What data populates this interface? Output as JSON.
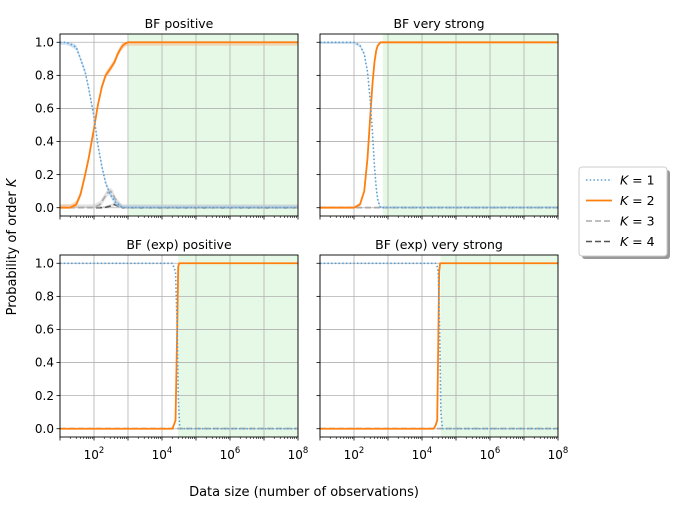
{
  "figure": {
    "ylabel": "Probability of order K",
    "ylabel_main": "Probability of order ",
    "ylabel_var": "K",
    "xlabel": "Data size (number of observations)"
  },
  "legend": {
    "placement": "right",
    "entries": [
      {
        "label": "K = 1",
        "var": "K",
        "eq": " = 1",
        "color": "#5a9fd4",
        "style": "dotted"
      },
      {
        "label": "K = 2",
        "var": "K",
        "eq": " = 2",
        "color": "#ff7f0e",
        "style": "solid"
      },
      {
        "label": "K = 3",
        "var": "K",
        "eq": " = 3",
        "color": "#aaaaaa",
        "style": "dashed"
      },
      {
        "label": "K = 4",
        "var": "K",
        "eq": " = 4",
        "color": "#555555",
        "style": "dashed"
      }
    ]
  },
  "colors": {
    "shade": "#e6f9e6",
    "band_blue": "#a9cbe8",
    "band_orange": "#f5b98a",
    "band_grey": "#cccccc"
  },
  "chart_data": [
    {
      "type": "line",
      "title": "BF positive",
      "xscale": "log",
      "xlim": [
        10,
        100000000
      ],
      "ylim": [
        -0.05,
        1.05
      ],
      "xticks": [
        {
          "value": 100,
          "base": "10",
          "exp": "2"
        },
        {
          "value": 10000,
          "base": "10",
          "exp": "4"
        },
        {
          "value": 1000000,
          "base": "10",
          "exp": "6"
        },
        {
          "value": 100000000,
          "base": "10",
          "exp": "8"
        }
      ],
      "yticks": [
        {
          "value": 0.0,
          "label": "0.0"
        },
        {
          "value": 0.2,
          "label": "0.2"
        },
        {
          "value": 0.4,
          "label": "0.4"
        },
        {
          "value": 0.6,
          "label": "0.6"
        },
        {
          "value": 0.8,
          "label": "0.8"
        },
        {
          "value": 1.0,
          "label": "1.0"
        }
      ],
      "grid": true,
      "shaded_from_x": 1050,
      "show_xticklabels": false,
      "show_yticklabels": true,
      "series": [
        {
          "name": "K = 1",
          "x": [
            10,
            15,
            20,
            30,
            40,
            55,
            70,
            100,
            130,
            170,
            220,
            300,
            400,
            500,
            600,
            700,
            800,
            1000,
            1500,
            100000000
          ],
          "y": [
            1.0,
            1.0,
            0.99,
            0.97,
            0.9,
            0.82,
            0.72,
            0.55,
            0.38,
            0.25,
            0.15,
            0.08,
            0.04,
            0.02,
            0.01,
            0.0,
            0.0,
            0.0,
            0.0,
            0.0
          ],
          "band": 0.015
        },
        {
          "name": "K = 2",
          "x": [
            10,
            20,
            30,
            40,
            55,
            70,
            100,
            130,
            170,
            220,
            300,
            400,
            500,
            600,
            700,
            800,
            1000,
            1200,
            100000000
          ],
          "y": [
            0.0,
            0.0,
            0.02,
            0.08,
            0.2,
            0.3,
            0.48,
            0.62,
            0.73,
            0.8,
            0.84,
            0.88,
            0.93,
            0.96,
            0.98,
            0.99,
            1.0,
            1.0,
            1.0
          ],
          "band": 0.02
        },
        {
          "name": "K = 3",
          "x": [
            10,
            100,
            150,
            200,
            250,
            300,
            350,
            400,
            500,
            600,
            700,
            1000,
            100000000
          ],
          "y": [
            0.0,
            0.0,
            0.02,
            0.06,
            0.09,
            0.1,
            0.09,
            0.06,
            0.03,
            0.01,
            0.0,
            0.0,
            0.0
          ],
          "band": 0.02
        },
        {
          "name": "K = 4",
          "x": [
            10,
            200,
            300,
            400,
            500,
            700,
            1000,
            100000000
          ],
          "y": [
            0.0,
            0.0,
            0.01,
            0.02,
            0.01,
            0.0,
            0.0,
            0.0
          ],
          "band": 0.01
        }
      ]
    },
    {
      "type": "line",
      "title": "BF very strong",
      "xscale": "log",
      "xlim": [
        10,
        100000000
      ],
      "ylim": [
        -0.05,
        1.05
      ],
      "xticks": [
        {
          "value": 100,
          "base": "10",
          "exp": "2"
        },
        {
          "value": 10000,
          "base": "10",
          "exp": "4"
        },
        {
          "value": 1000000,
          "base": "10",
          "exp": "6"
        },
        {
          "value": 100000000,
          "base": "10",
          "exp": "8"
        }
      ],
      "yticks": [
        {
          "value": 0.0,
          "label": "0.0"
        },
        {
          "value": 0.2,
          "label": "0.2"
        },
        {
          "value": 0.4,
          "label": "0.4"
        },
        {
          "value": 0.6,
          "label": "0.6"
        },
        {
          "value": 0.8,
          "label": "0.8"
        },
        {
          "value": 1.0,
          "label": "1.0"
        }
      ],
      "grid": true,
      "shaded_from_x": 700,
      "show_xticklabels": false,
      "show_yticklabels": false,
      "series": [
        {
          "name": "K = 1",
          "x": [
            10,
            100,
            150,
            200,
            250,
            300,
            350,
            400,
            450,
            500,
            550,
            600,
            100000000
          ],
          "y": [
            1.0,
            1.0,
            0.98,
            0.93,
            0.82,
            0.65,
            0.45,
            0.25,
            0.12,
            0.05,
            0.02,
            0.0,
            0.0
          ],
          "band": 0.01
        },
        {
          "name": "K = 2",
          "x": [
            10,
            100,
            150,
            200,
            250,
            300,
            350,
            400,
            450,
            500,
            550,
            600,
            100000000
          ],
          "y": [
            0.0,
            0.0,
            0.02,
            0.1,
            0.3,
            0.55,
            0.75,
            0.88,
            0.95,
            0.98,
            0.99,
            1.0,
            1.0
          ],
          "band": 0.01
        },
        {
          "name": "K = 3",
          "x": [
            10,
            100000000
          ],
          "y": [
            0.0,
            0.0
          ],
          "band": 0
        },
        {
          "name": "K = 4",
          "x": [
            10,
            100000000
          ],
          "y": [
            0.0,
            0.0
          ],
          "band": 0
        }
      ]
    },
    {
      "type": "line",
      "title": "BF (exp) positive",
      "xscale": "log",
      "xlim": [
        10,
        100000000
      ],
      "ylim": [
        -0.05,
        1.05
      ],
      "xticks": [
        {
          "value": 100,
          "base": "10",
          "exp": "2"
        },
        {
          "value": 10000,
          "base": "10",
          "exp": "4"
        },
        {
          "value": 1000000,
          "base": "10",
          "exp": "6"
        },
        {
          "value": 100000000,
          "base": "10",
          "exp": "8"
        }
      ],
      "yticks": [
        {
          "value": 0.0,
          "label": "0.0"
        },
        {
          "value": 0.2,
          "label": "0.2"
        },
        {
          "value": 0.4,
          "label": "0.4"
        },
        {
          "value": 0.6,
          "label": "0.6"
        },
        {
          "value": 0.8,
          "label": "0.8"
        },
        {
          "value": 1.0,
          "label": "1.0"
        }
      ],
      "grid": true,
      "shaded_from_x": 30000,
      "show_xticklabels": true,
      "show_yticklabels": true,
      "series": [
        {
          "name": "K = 1",
          "x": [
            10,
            20000,
            22000,
            25000,
            28000,
            30000,
            33000,
            36000,
            100000000
          ],
          "y": [
            1.0,
            1.0,
            0.98,
            0.95,
            0.6,
            0.2,
            0.02,
            0.0,
            0.0
          ],
          "band": 0
        },
        {
          "name": "K = 2",
          "x": [
            10,
            20000,
            22000,
            25000,
            28000,
            30000,
            32000,
            100000000
          ],
          "y": [
            0.0,
            0.0,
            0.02,
            0.05,
            0.6,
            0.98,
            1.0,
            1.0
          ],
          "band": 0
        },
        {
          "name": "K = 3",
          "x": [
            10,
            100000000
          ],
          "y": [
            0.0,
            0.0
          ],
          "band": 0
        },
        {
          "name": "K = 4",
          "x": [
            10,
            100000000
          ],
          "y": [
            0.0,
            0.0
          ],
          "band": 0
        }
      ]
    },
    {
      "type": "line",
      "title": "BF (exp) very strong",
      "xscale": "log",
      "xlim": [
        10,
        100000000
      ],
      "ylim": [
        -0.05,
        1.05
      ],
      "xticks": [
        {
          "value": 100,
          "base": "10",
          "exp": "2"
        },
        {
          "value": 10000,
          "base": "10",
          "exp": "4"
        },
        {
          "value": 1000000,
          "base": "10",
          "exp": "6"
        },
        {
          "value": 100000000,
          "base": "10",
          "exp": "8"
        }
      ],
      "yticks": [
        {
          "value": 0.0,
          "label": "0.0"
        },
        {
          "value": 0.2,
          "label": "0.2"
        },
        {
          "value": 0.4,
          "label": "0.4"
        },
        {
          "value": 0.6,
          "label": "0.6"
        },
        {
          "value": 0.8,
          "label": "0.8"
        },
        {
          "value": 1.0,
          "label": "1.0"
        }
      ],
      "grid": true,
      "shaded_from_x": 35000,
      "show_xticklabels": true,
      "show_yticklabels": false,
      "series": [
        {
          "name": "K = 1",
          "x": [
            10,
            25000,
            28000,
            30000,
            33000,
            36000,
            40000,
            100000000
          ],
          "y": [
            1.0,
            1.0,
            0.98,
            0.95,
            0.6,
            0.1,
            0.0,
            0.0
          ],
          "band": 0
        },
        {
          "name": "K = 2",
          "x": [
            10,
            22000,
            25000,
            28000,
            30000,
            32000,
            34000,
            100000000
          ],
          "y": [
            0.0,
            0.0,
            0.02,
            0.05,
            0.5,
            0.95,
            1.0,
            1.0
          ],
          "band": 0
        },
        {
          "name": "K = 3",
          "x": [
            10,
            100000000
          ],
          "y": [
            0.0,
            0.0
          ],
          "band": 0
        },
        {
          "name": "K = 4",
          "x": [
            10,
            100000000
          ],
          "y": [
            0.0,
            0.0
          ],
          "band": 0
        }
      ]
    }
  ]
}
